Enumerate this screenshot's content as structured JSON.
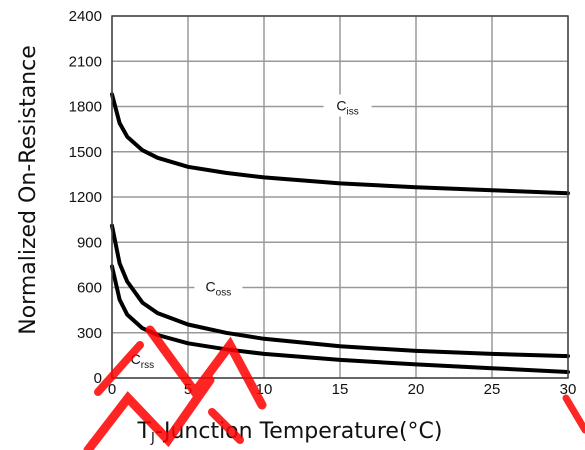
{
  "chart_data": {
    "type": "line",
    "xlabel_main": "T",
    "xlabel_sub": "J",
    "xlabel_rest": "-Junction Temperature(°C)",
    "ylabel": "Normalized On-Resistance",
    "xlim": [
      0,
      30
    ],
    "ylim": [
      0,
      2400
    ],
    "xticks": [
      0,
      5,
      10,
      15,
      20,
      25,
      30
    ],
    "yticks": [
      0,
      300,
      600,
      900,
      1200,
      1500,
      1800,
      2100,
      2400
    ],
    "grid": true,
    "series": [
      {
        "name_main": "C",
        "name_sub": "iss",
        "x": [
          0,
          0.5,
          1,
          2,
          3,
          5,
          7.5,
          10,
          15,
          20,
          25,
          30
        ],
        "values": [
          1880,
          1690,
          1600,
          1510,
          1460,
          1400,
          1360,
          1330,
          1290,
          1265,
          1245,
          1225
        ]
      },
      {
        "name_main": "C",
        "name_sub": "oss",
        "x": [
          0,
          0.5,
          1,
          2,
          3,
          5,
          7.5,
          10,
          15,
          20,
          25,
          30
        ],
        "values": [
          1010,
          760,
          640,
          500,
          430,
          355,
          300,
          260,
          210,
          180,
          160,
          145
        ]
      },
      {
        "name_main": "C",
        "name_sub": "rss",
        "x": [
          0,
          0.5,
          1,
          2,
          3,
          5,
          7.5,
          10,
          15,
          20,
          25,
          30
        ],
        "values": [
          740,
          520,
          420,
          330,
          285,
          230,
          190,
          160,
          120,
          90,
          65,
          40
        ]
      }
    ],
    "annotations": [
      {
        "series": 0,
        "x": 15.5,
        "y": 1800
      },
      {
        "series": 1,
        "x": 7,
        "y": 600
      },
      {
        "series": 2,
        "x": 2,
        "y": 120
      }
    ],
    "colors": {
      "line": "#000000",
      "grid": "#999999",
      "watermark": "#ff0000"
    }
  }
}
